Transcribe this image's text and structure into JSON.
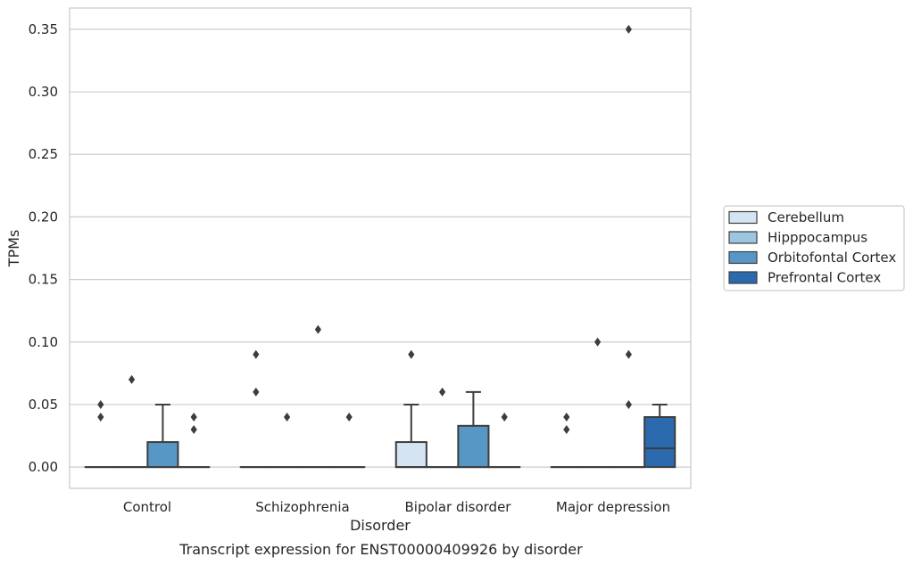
{
  "chart_data": {
    "type": "box",
    "xlabel": "Disorder",
    "ylabel": "TPMs",
    "caption": "Transcript expression for ENST00000409926 by disorder",
    "categories": [
      "Control",
      "Schizophrenia",
      "Bipolar disorder",
      "Major depression"
    ],
    "ylim": [
      -0.017,
      0.367
    ],
    "yticks": [
      "0.00",
      "0.05",
      "0.10",
      "0.15",
      "0.20",
      "0.25",
      "0.30",
      "0.35"
    ],
    "ytick_values": [
      0,
      0.05,
      0.1,
      0.15,
      0.2,
      0.25,
      0.3,
      0.35
    ],
    "grid": true,
    "legend": {
      "position": "right"
    },
    "series": [
      {
        "name": "Cerebellum",
        "color": "#d4e4f2",
        "boxes": [
          {
            "q1": 0,
            "median": 0,
            "q3": 0,
            "whislo": 0,
            "whishi": 0,
            "fliers": [
              0.04,
              0.05
            ]
          },
          {
            "q1": 0,
            "median": 0,
            "q3": 0,
            "whislo": 0,
            "whishi": 0,
            "fliers": [
              0.06,
              0.09
            ]
          },
          {
            "q1": 0,
            "median": 0,
            "q3": 0.02,
            "whislo": 0,
            "whishi": 0.05,
            "fliers": [
              0.09
            ]
          },
          {
            "q1": 0,
            "median": 0,
            "q3": 0,
            "whislo": 0,
            "whishi": 0,
            "fliers": [
              0.03,
              0.04
            ]
          }
        ]
      },
      {
        "name": "Hipppocampus",
        "color": "#9dc5e0",
        "boxes": [
          {
            "q1": 0,
            "median": 0,
            "q3": 0,
            "whislo": 0,
            "whishi": 0,
            "fliers": [
              0.07
            ]
          },
          {
            "q1": 0,
            "median": 0,
            "q3": 0,
            "whislo": 0,
            "whishi": 0,
            "fliers": [
              0.04
            ]
          },
          {
            "q1": 0,
            "median": 0,
            "q3": 0,
            "whislo": 0,
            "whishi": 0,
            "fliers": [
              0.06
            ]
          },
          {
            "q1": 0,
            "median": 0,
            "q3": 0,
            "whislo": 0,
            "whishi": 0,
            "fliers": [
              0.1
            ]
          }
        ]
      },
      {
        "name": "Orbitofontal Cortex",
        "color": "#5797c6",
        "boxes": [
          {
            "q1": 0,
            "median": 0,
            "q3": 0.02,
            "whislo": 0,
            "whishi": 0.05,
            "fliers": []
          },
          {
            "q1": 0,
            "median": 0,
            "q3": 0,
            "whislo": 0,
            "whishi": 0,
            "fliers": [
              0.11
            ]
          },
          {
            "q1": 0,
            "median": 0,
            "q3": 0.033,
            "whislo": 0,
            "whishi": 0.06,
            "fliers": []
          },
          {
            "q1": 0,
            "median": 0,
            "q3": 0,
            "whislo": 0,
            "whishi": 0,
            "fliers": [
              0.05,
              0.09,
              0.35
            ]
          }
        ]
      },
      {
        "name": "Prefrontal Cortex",
        "color": "#2b6aad",
        "boxes": [
          {
            "q1": 0,
            "median": 0,
            "q3": 0,
            "whislo": 0,
            "whishi": 0,
            "fliers": [
              0.03,
              0.04
            ]
          },
          {
            "q1": 0,
            "median": 0,
            "q3": 0,
            "whislo": 0,
            "whishi": 0,
            "fliers": [
              0.04
            ]
          },
          {
            "q1": 0,
            "median": 0,
            "q3": 0,
            "whislo": 0,
            "whishi": 0,
            "fliers": [
              0.04
            ]
          },
          {
            "q1": 0,
            "median": 0.015,
            "q3": 0.04,
            "whislo": 0,
            "whishi": 0.05,
            "fliers": []
          }
        ]
      }
    ]
  }
}
